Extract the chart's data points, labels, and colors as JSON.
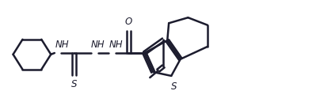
{
  "bg_color": "#ffffff",
  "line_color": "#1c1c2e",
  "line_width": 1.8,
  "font_size": 8.5,
  "figsize": [
    4.04,
    1.34
  ],
  "dpi": 100,
  "xlim": [
    0,
    10.5
  ],
  "ylim": [
    0,
    3.8
  ]
}
